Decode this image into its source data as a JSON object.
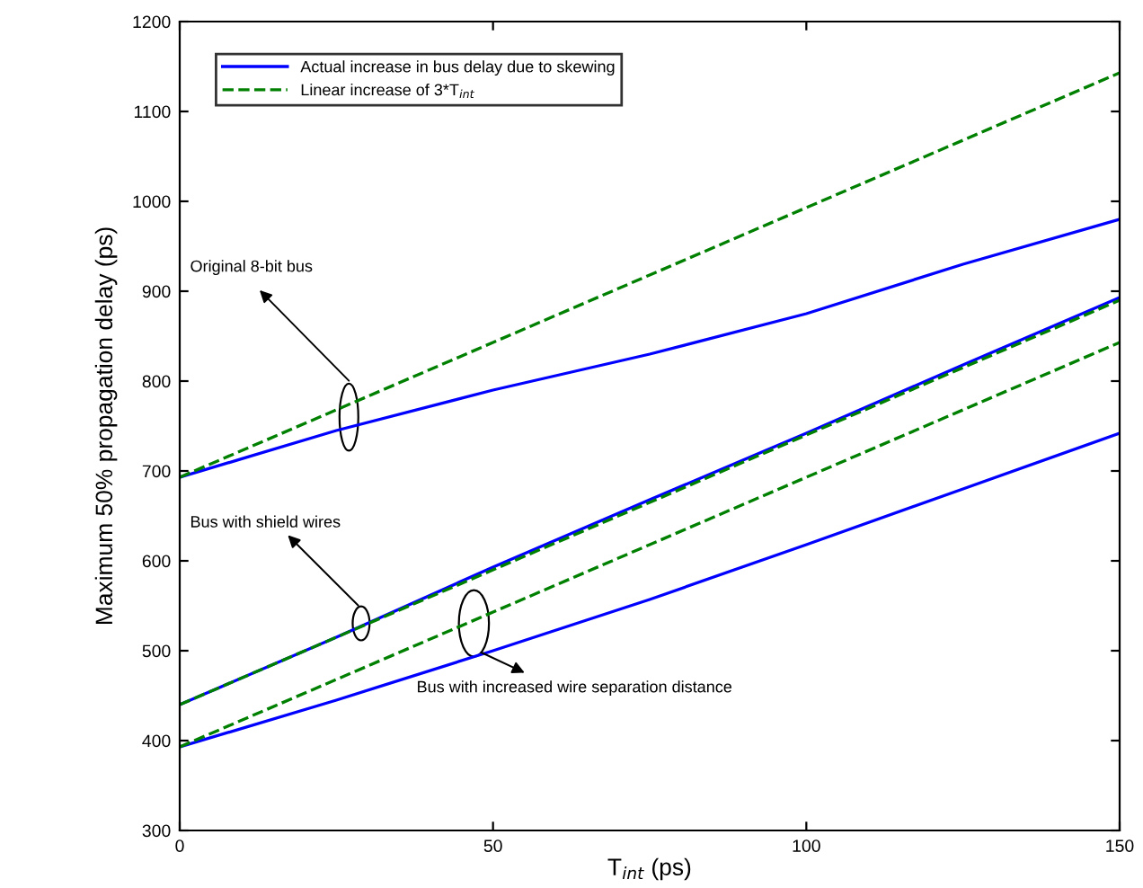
{
  "chart_data": {
    "type": "line",
    "xlabel": "T$_{int}$ (ps)",
    "ylabel": "Maximum 50% propagation delay (ps)",
    "x": [
      0,
      25,
      50,
      75,
      100,
      125,
      150
    ],
    "series": [
      {
        "name": "Actual increase in bus delay due to skewing",
        "color": "#0000ff",
        "line_style": "solid",
        "values": [
          693,
          745,
          790,
          830,
          875,
          930,
          980
        ]
      },
      {
        "name": "Linear increase of 3*T$_{int}$",
        "color": "#008000",
        "line_style": "dashed",
        "values": [
          693,
          768,
          843,
          918,
          993,
          1068,
          1143
        ]
      },
      {
        "color": "#0000ff",
        "line_style": "solid",
        "values": [
          440,
          515,
          593,
          668,
          742,
          818,
          893
        ]
      },
      {
        "color": "#008000",
        "line_style": "dashed",
        "values": [
          440,
          515,
          590,
          665,
          740,
          815,
          890
        ]
      },
      {
        "color": "#0000ff",
        "line_style": "solid",
        "values": [
          393,
          445,
          500,
          557,
          618,
          680,
          742
        ]
      },
      {
        "color": "#008000",
        "line_style": "dashed",
        "values": [
          393,
          468,
          543,
          618,
          693,
          768,
          843
        ]
      }
    ],
    "annotations": [
      "Original 8-bit bus",
      "Bus with shield wires",
      "Bus with increased wire separation distance"
    ],
    "xlim": [
      0,
      150
    ],
    "xticks": [
      0,
      50,
      100,
      150
    ],
    "ylim": [
      300,
      1200
    ],
    "yticks": [
      300,
      400,
      500,
      600,
      700,
      800,
      900,
      1000,
      1100,
      1200
    ],
    "grid": false,
    "legend": "top left",
    "marker": "none"
  }
}
